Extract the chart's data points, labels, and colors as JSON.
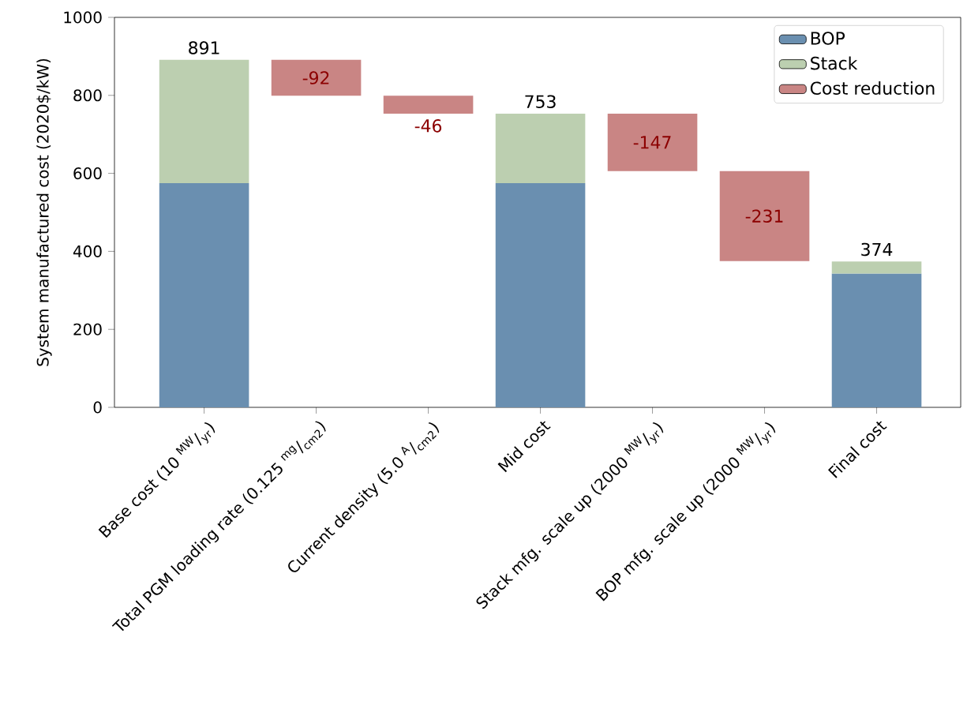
{
  "chart_data": {
    "type": "bar",
    "ylabel": "System manufactured cost (2020$/kW)",
    "categories": [
      "Base cost (10 $^{MW}$/$_{yr}$)",
      "Total PGM loading rate (0.125 $^{mg}$/$_{cm2}$)",
      "Current density (5.0 $^{A}$/$_{cm2}$)",
      "Mid cost",
      "Stack mfg. scale up (2000 $^{MW}$/$_{yr}$)",
      "BOP mfg. scale up (2000 $^{MW}$/$_{yr}$)",
      "Final cost"
    ],
    "stacked": true,
    "series": [
      {
        "name": "BOP",
        "color": "#6a8fb0",
        "values": [
          575,
          null,
          null,
          575,
          null,
          null,
          343
        ]
      },
      {
        "name": "Stack",
        "color": "#bccfb0",
        "values": [
          316,
          null,
          null,
          178,
          null,
          null,
          31
        ]
      },
      {
        "name": "Cost reduction",
        "color": "#c98584",
        "values": [
          null,
          -92,
          -46,
          null,
          -147,
          -231,
          null
        ],
        "base": [
          null,
          891,
          799,
          null,
          753,
          606,
          null
        ],
        "value_labels": [
          null,
          "-92",
          "-46",
          null,
          "-147",
          "-231",
          null
        ]
      }
    ],
    "totals": [
      "891",
      null,
      null,
      "753",
      null,
      null,
      "374"
    ],
    "ylim": [
      0,
      1000
    ],
    "yticks": [
      0,
      200,
      400,
      600,
      800,
      1000
    ],
    "legend": "top right"
  }
}
